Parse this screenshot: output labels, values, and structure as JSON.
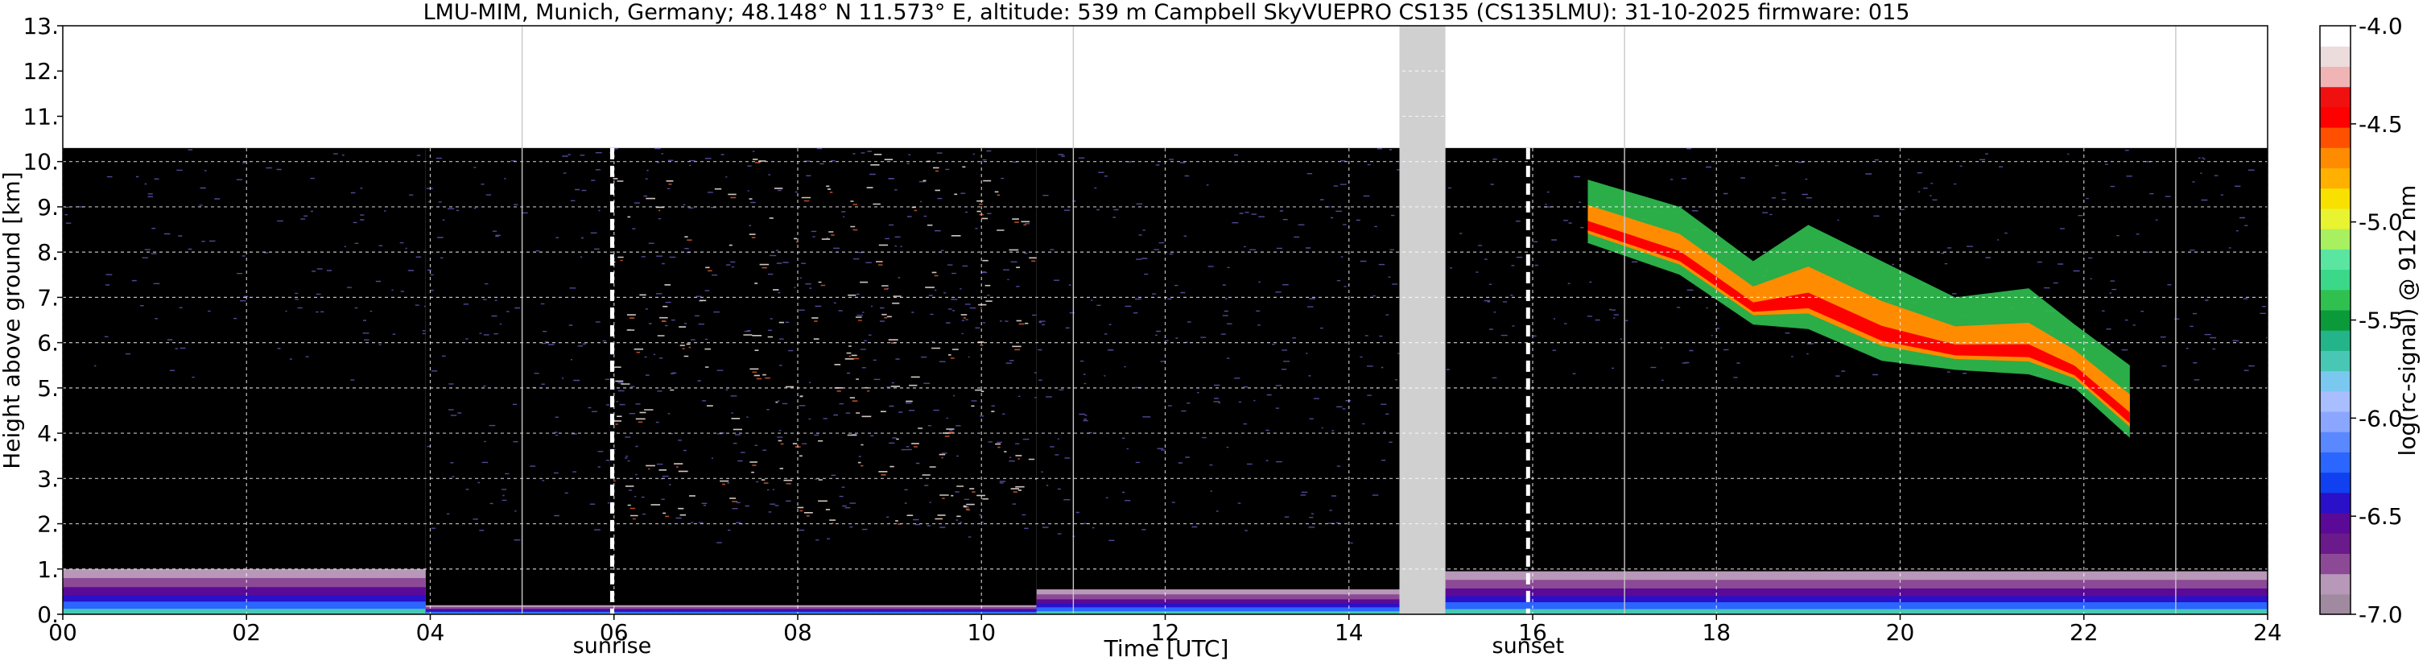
{
  "chart_data": {
    "type": "heatmap",
    "title": "LMU-MIM, Munich, Germany; 48.148° N 11.573° E, altitude: 539 m    Campbell SkyVUEPRO CS135 (CS135LMU): 31-10-2025    firmware: 015",
    "xlabel": "Time [UTC]",
    "ylabel": "Height above ground [km]",
    "xlim": [
      0,
      24
    ],
    "ylim": [
      0,
      13
    ],
    "x_ticks": [
      "00",
      "02",
      "04",
      "06",
      "08",
      "10",
      "12",
      "14",
      "16",
      "18",
      "20",
      "22",
      "24"
    ],
    "y_ticks": [
      "0.",
      "1.",
      "2.",
      "3.",
      "4.",
      "5.",
      "6.",
      "7.",
      "8.",
      "9.",
      "10.",
      "11.",
      "12.",
      "13."
    ],
    "grid": true,
    "colorbar": {
      "label": "log(rc-signal) @ 912 nm",
      "range": [
        -7.0,
        -4.0
      ],
      "ticks": [
        "-4.0",
        "-4.5",
        "-5.0",
        "-5.5",
        "-6.0",
        "-6.5",
        "-7.0"
      ],
      "colors": [
        "#a08aa0",
        "#b898b8",
        "#8c4a96",
        "#6a1a8a",
        "#5a0a96",
        "#2a10c8",
        "#1040f0",
        "#2a66ff",
        "#5a88ff",
        "#8aa6ff",
        "#a8beff",
        "#7ac8f0",
        "#48c8b4",
        "#24b48a",
        "#0a9a3a",
        "#30c050",
        "#3ad888",
        "#5ae6a0",
        "#a8f060",
        "#e8f430",
        "#f8e000",
        "#ffb000",
        "#ff8c00",
        "#ff5000",
        "#ff0000",
        "#f01010",
        "#f0b4b4",
        "#ecdcdc",
        "#ffffff"
      ]
    },
    "annotations": [
      {
        "label": "sunrise",
        "x": 5.98
      },
      {
        "label": "sunset",
        "x": 15.95
      }
    ],
    "data_gaps": [
      {
        "x_start": 14.55,
        "x_end": 15.05
      }
    ],
    "hour_markers": [
      5.0,
      11.0,
      17.0,
      23.0
    ],
    "series": [
      {
        "type": "boundary_layer",
        "segments": [
          {
            "x0": 0.0,
            "x1": 3.95,
            "top_km": 1.0
          },
          {
            "x0": 3.95,
            "x1": 10.6,
            "top_km": 0.2
          },
          {
            "x0": 10.6,
            "x1": 14.55,
            "top_km": 0.55
          },
          {
            "x0": 15.05,
            "x1": 24.0,
            "top_km": 0.95
          }
        ]
      },
      {
        "type": "noise_region",
        "segments": [
          {
            "x0": 0.0,
            "x1": 3.95,
            "top_km": 10.3,
            "level": "low"
          },
          {
            "x0": 3.95,
            "x1": 5.95,
            "top_km": 10.3,
            "level": "medium"
          },
          {
            "x0": 5.95,
            "x1": 10.6,
            "top_km": 10.3,
            "level": "high"
          },
          {
            "x0": 10.6,
            "x1": 14.55,
            "top_km": 10.3,
            "level": "medium"
          },
          {
            "x0": 15.05,
            "x1": 24.0,
            "top_km": 10.3,
            "level": "low"
          }
        ]
      },
      {
        "type": "cirrus_layer",
        "points": [
          {
            "x": 16.6,
            "base_km": 8.2,
            "top_km": 9.6
          },
          {
            "x": 17.6,
            "base_km": 7.5,
            "top_km": 9.0
          },
          {
            "x": 18.4,
            "base_km": 6.4,
            "top_km": 7.8
          },
          {
            "x": 19.0,
            "base_km": 6.3,
            "top_km": 8.6
          },
          {
            "x": 19.8,
            "base_km": 5.6,
            "top_km": 7.8
          },
          {
            "x": 20.6,
            "base_km": 5.4,
            "top_km": 7.0
          },
          {
            "x": 21.4,
            "base_km": 5.3,
            "top_km": 7.2
          },
          {
            "x": 21.9,
            "base_km": 5.0,
            "top_km": 6.4
          },
          {
            "x": 22.5,
            "base_km": 3.9,
            "top_km": 5.5
          }
        ]
      }
    ]
  }
}
